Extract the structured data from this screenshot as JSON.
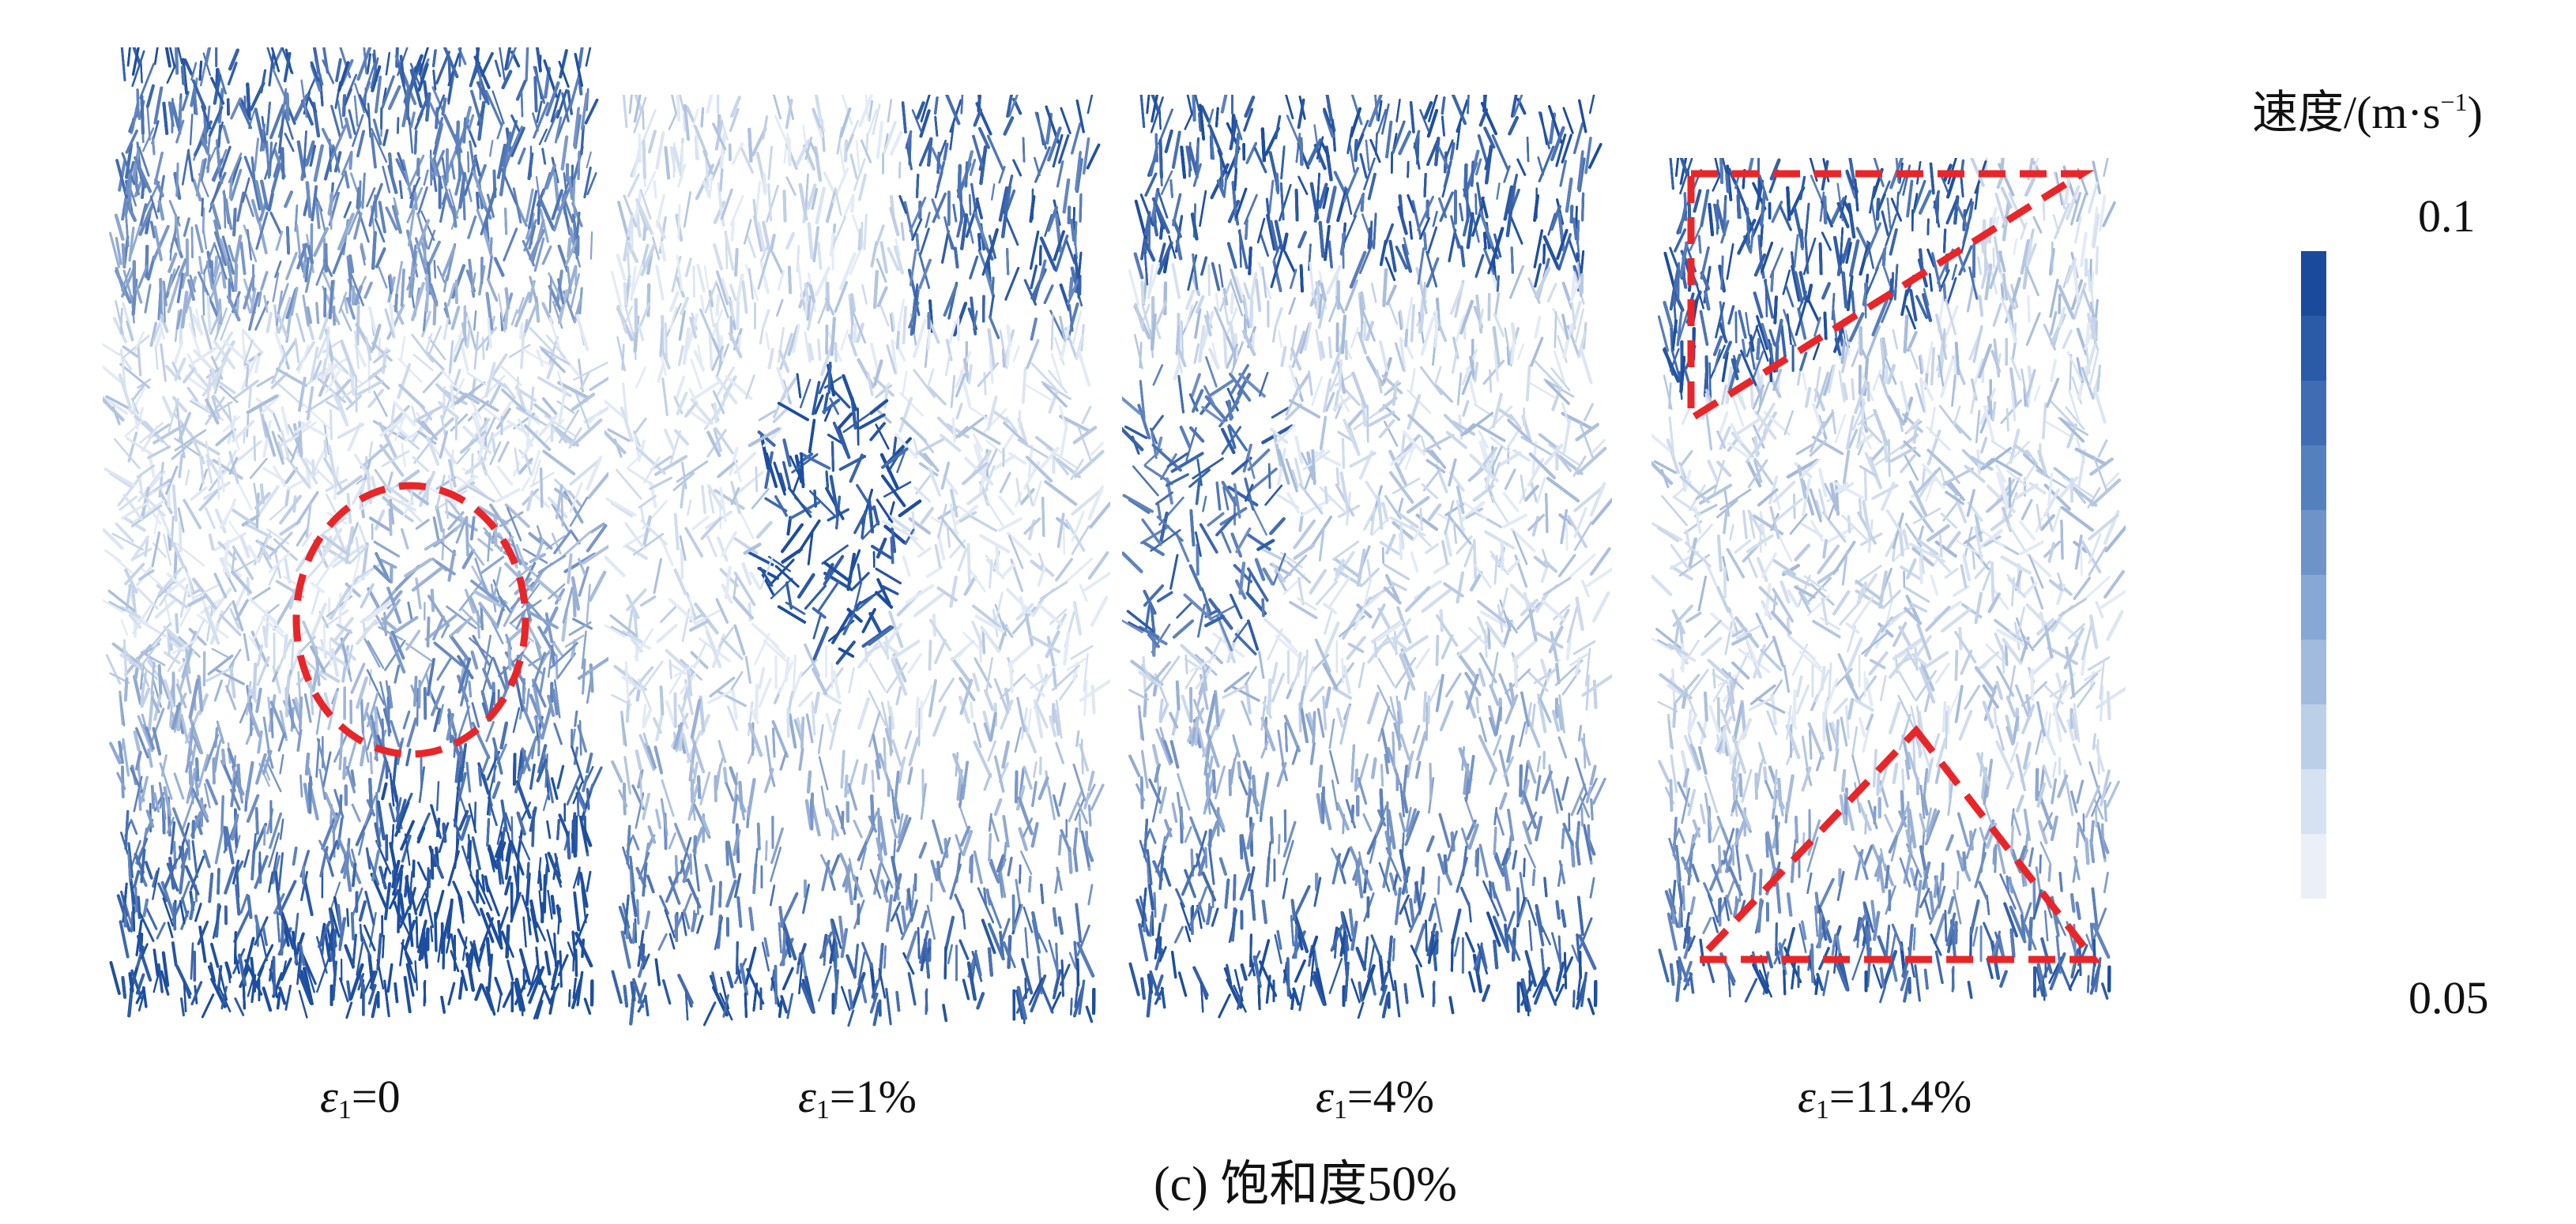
{
  "panels": [
    {
      "id": "p1",
      "label_symbol": "ε",
      "label_sub": "1",
      "label_value": "=0"
    },
    {
      "id": "p2",
      "label_symbol": "ε",
      "label_sub": "1",
      "label_value": "=1%"
    },
    {
      "id": "p3",
      "label_symbol": "ε",
      "label_sub": "1",
      "label_value": "=4%"
    },
    {
      "id": "p4",
      "label_symbol": "ε",
      "label_sub": "1",
      "label_value": "=11.4%"
    }
  ],
  "caption": "(c) 饱和度50%",
  "legend": {
    "title": "速度/(m·s",
    "title_sup": "−1",
    "title_end": ")",
    "max_label": "0.1",
    "min_label": "0.05",
    "colors": [
      "#1a4a9c",
      "#2b5aa8",
      "#3f6cb3",
      "#5580be",
      "#6d93c9",
      "#87a7d4",
      "#a1bbde",
      "#bccfe8",
      "#d6e1f1",
      "#ebf0f8"
    ]
  },
  "colors": {
    "dark": "#1d4e9e",
    "light": "#e4ebf5",
    "annotation": "#e8262a"
  }
}
